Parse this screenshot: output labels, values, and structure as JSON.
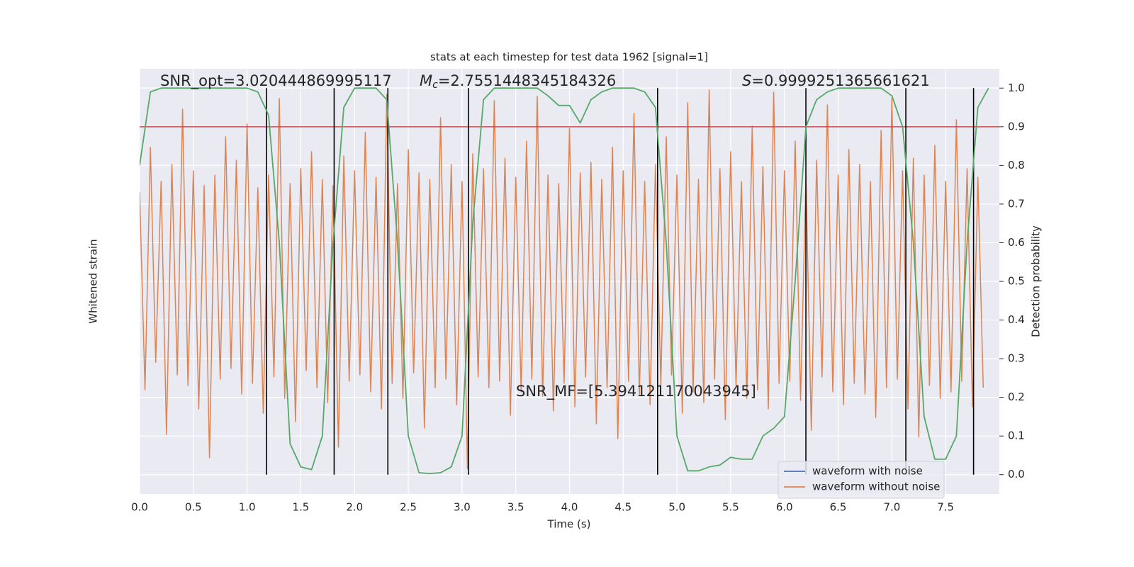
{
  "chart_data": {
    "type": "line",
    "title": "stats at each timestep for test data 1962 [signal=1]",
    "x_label": "Time (s)",
    "y_label": "Whitened strain",
    "y2_label": "Detection probability",
    "xlim": [
      0,
      8
    ],
    "xticks": [
      {
        "value": 0,
        "label": "0.0"
      },
      0.5,
      {
        "value": 1,
        "label": "1.0"
      },
      1.5,
      {
        "value": 2,
        "label": "2.0"
      },
      2.5,
      {
        "value": 3,
        "label": "3.0"
      },
      3.5,
      {
        "value": 4,
        "label": "4.0"
      },
      4.5,
      {
        "value": 5,
        "label": "5.0"
      },
      5.5,
      {
        "value": 6,
        "label": "6.0"
      },
      6.5,
      {
        "value": 7,
        "label": "7.0"
      },
      7.5
    ],
    "ylim": [
      -1,
      1
    ],
    "y2lim": [
      -0.05,
      1.05
    ],
    "y2ticks": [
      {
        "value": 0,
        "label": "0.0"
      },
      0.1,
      0.2,
      0.3,
      0.4,
      0.5,
      0.6,
      0.7,
      0.8,
      0.9,
      {
        "value": 1,
        "label": "1.0"
      }
    ],
    "grid": true,
    "legend": {
      "loc": "lower right",
      "entries": [
        {
          "name": "waveform with noise",
          "color": "#4c72b0"
        },
        {
          "name": "waveform without noise",
          "color": "#dd8452"
        }
      ]
    },
    "strain": {
      "color": "#dd8452",
      "t0": 0,
      "dt": 0.05,
      "values": [
        0.42,
        -0.51,
        0.63,
        -0.38,
        0.47,
        -0.72,
        0.55,
        -0.44,
        0.81,
        -0.49,
        0.52,
        -0.6,
        0.45,
        -0.83,
        0.5,
        -0.46,
        0.68,
        -0.41,
        0.57,
        -0.53,
        0.74,
        -0.48,
        0.44,
        -0.62,
        0.5,
        -0.45,
        0.86,
        -0.55,
        0.46,
        -0.66,
        0.53,
        -0.42,
        0.61,
        -0.5,
        0.48,
        -0.57,
        0.45,
        -0.78,
        0.59,
        -0.47,
        0.52,
        -0.44,
        0.7,
        -0.52,
        0.49,
        -0.6,
        0.88,
        -0.48,
        0.46,
        -0.55,
        0.62,
        -0.43,
        0.51,
        -0.69,
        0.48,
        -0.5,
        0.77,
        -0.46,
        0.55,
        -0.58,
        0.47,
        -0.88,
        0.6,
        -0.45,
        0.53,
        -0.5,
        0.85,
        -0.47,
        0.58,
        -0.63,
        0.49,
        -0.52,
        0.66,
        -0.46,
        0.87,
        -0.54,
        0.5,
        -0.61,
        0.46,
        -0.48,
        0.72,
        -0.59,
        0.51,
        -0.45,
        0.56,
        -0.67,
        0.48,
        -0.5,
        0.63,
        -0.74,
        0.52,
        -0.47,
        0.79,
        -0.53,
        0.47,
        -0.58,
        0.55,
        -0.49,
        0.68,
        -0.44,
        0.5,
        -0.62,
        0.84,
        -0.52,
        0.48,
        -0.57,
        0.9,
        -0.46,
        0.53,
        -0.65,
        0.61,
        -0.49,
        0.47,
        -0.55,
        0.73,
        -0.51,
        0.54,
        -0.6,
        0.89,
        -0.48,
        0.52,
        -0.47,
        0.66,
        -0.56,
        0.49,
        -0.7,
        0.57,
        -0.45,
        0.83,
        -0.52,
        0.5,
        -0.58,
        0.62,
        -0.48,
        0.55,
        -0.53,
        0.47,
        -0.64,
        0.71,
        -0.5,
        0.86,
        -0.46,
        0.52,
        -0.6,
        0.58,
        -0.73,
        0.5,
        -0.49,
        0.64,
        -0.55,
        0.47,
        -0.52,
        0.76,
        -0.47,
        0.53,
        -0.59,
        0.49,
        -0.5
      ]
    },
    "probability": {
      "color": "#55a868",
      "axis": "y2",
      "t0": 0,
      "dt": 0.1,
      "values": [
        0.8,
        0.99,
        1.0,
        1.0,
        1.0,
        1.0,
        1.0,
        1.0,
        1.0,
        1.0,
        1.0,
        0.99,
        0.93,
        0.6,
        0.08,
        0.02,
        0.013,
        0.1,
        0.6,
        0.95,
        1.0,
        1.0,
        1.0,
        0.97,
        0.6,
        0.1,
        0.005,
        0.003,
        0.005,
        0.02,
        0.1,
        0.65,
        0.97,
        1.0,
        1.0,
        1.0,
        1.0,
        1.0,
        0.98,
        0.955,
        0.955,
        0.91,
        0.97,
        0.99,
        1.0,
        1.0,
        1.0,
        0.99,
        0.95,
        0.6,
        0.1,
        0.01,
        0.01,
        0.02,
        0.025,
        0.045,
        0.04,
        0.04,
        0.1,
        0.12,
        0.15,
        0.5,
        0.9,
        0.97,
        0.99,
        1.0,
        1.0,
        1.0,
        1.0,
        1.0,
        0.98,
        0.9,
        0.6,
        0.15,
        0.04,
        0.04,
        0.1,
        0.6,
        0.95,
        1.0
      ]
    },
    "threshold": {
      "value": 0.9,
      "color": "#c44e52"
    },
    "markers": {
      "color": "#000000",
      "values": [
        1.18,
        1.81,
        2.31,
        3.06,
        4.82,
        6.2,
        7.13,
        7.76
      ]
    },
    "annotations": [
      {
        "text": "SNR_opt=3.020444869995117"
      },
      {
        "symbol": "M",
        "subscript": "c",
        "text": "=2.7551448345184326"
      },
      {
        "symbol": "S",
        "text": "=0.9999251365661621"
      },
      {
        "text": "SNR_MF=[5.394121170043945]"
      }
    ]
  }
}
